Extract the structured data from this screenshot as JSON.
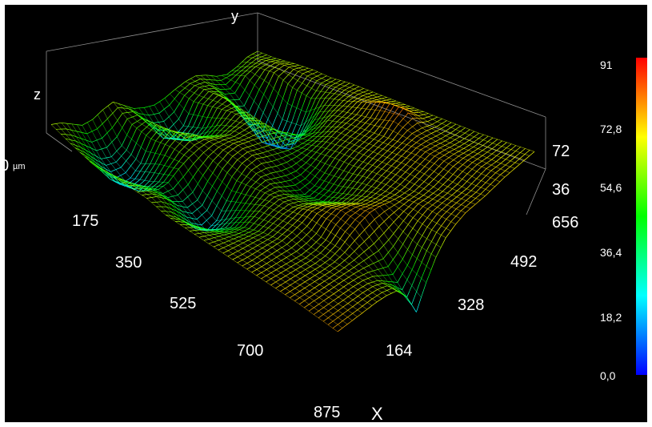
{
  "chart_data": {
    "type": "surface",
    "axis_names": {
      "x": "X",
      "y": "y",
      "z": "z"
    },
    "z_unit": "µm",
    "x_ticks": [
      "175",
      "350",
      "525",
      "700",
      "875"
    ],
    "y_ticks": [
      "164",
      "328",
      "492",
      "656"
    ],
    "z_ticks": [
      "0",
      "36",
      "72"
    ],
    "x_range": [
      0,
      875
    ],
    "y_range": [
      0,
      820
    ],
    "z_range": [
      0,
      91
    ],
    "colorbar": {
      "min": 0,
      "max": 91,
      "ticks": [
        "91",
        "72,8",
        "54,6",
        "36,4",
        "18,2",
        "0,0"
      ],
      "colormap": [
        "#0000ff",
        "#00ffff",
        "#00ff00",
        "#ffff00",
        "#ff0000"
      ]
    },
    "surface_heights_um": [
      [
        62,
        60,
        55,
        50,
        52,
        58,
        62,
        55,
        48,
        45,
        44,
        47,
        52,
        56,
        58,
        55,
        50,
        48,
        52,
        58,
        60
      ],
      [
        58,
        50,
        40,
        30,
        28,
        35,
        52,
        54,
        40,
        26,
        22,
        30,
        50,
        58,
        55,
        45,
        42,
        55,
        60,
        62,
        60
      ],
      [
        55,
        42,
        28,
        18,
        20,
        30,
        50,
        58,
        48,
        35,
        30,
        38,
        55,
        60,
        50,
        30,
        25,
        45,
        62,
        65,
        62
      ],
      [
        58,
        48,
        35,
        25,
        30,
        42,
        55,
        62,
        58,
        50,
        46,
        52,
        60,
        58,
        40,
        15,
        8,
        28,
        55,
        64,
        63
      ],
      [
        60,
        55,
        48,
        40,
        42,
        50,
        56,
        60,
        62,
        60,
        58,
        60,
        62,
        56,
        38,
        18,
        12,
        30,
        52,
        62,
        62
      ],
      [
        62,
        58,
        50,
        38,
        30,
        32,
        45,
        56,
        62,
        64,
        62,
        60,
        58,
        55,
        48,
        40,
        42,
        52,
        60,
        64,
        64
      ],
      [
        60,
        52,
        40,
        28,
        20,
        24,
        38,
        52,
        60,
        62,
        58,
        55,
        52,
        50,
        50,
        52,
        58,
        62,
        65,
        66,
        64
      ],
      [
        62,
        56,
        48,
        40,
        36,
        40,
        48,
        56,
        58,
        54,
        50,
        48,
        50,
        54,
        58,
        62,
        64,
        66,
        72,
        68,
        64
      ],
      [
        64,
        60,
        56,
        52,
        50,
        54,
        58,
        60,
        56,
        48,
        42,
        44,
        50,
        58,
        62,
        64,
        66,
        70,
        80,
        70,
        64
      ],
      [
        66,
        64,
        62,
        60,
        58,
        60,
        62,
        62,
        58,
        52,
        46,
        48,
        54,
        60,
        64,
        66,
        68,
        76,
        82,
        70,
        64
      ],
      [
        68,
        66,
        65,
        64,
        63,
        64,
        66,
        70,
        68,
        62,
        56,
        56,
        60,
        64,
        66,
        68,
        70,
        72,
        70,
        66,
        64
      ],
      [
        70,
        68,
        66,
        64,
        62,
        62,
        64,
        72,
        75,
        72,
        66,
        64,
        64,
        66,
        68,
        70,
        72,
        70,
        67,
        65,
        64
      ],
      [
        72,
        70,
        68,
        66,
        64,
        63,
        65,
        70,
        74,
        76,
        74,
        70,
        67,
        66,
        68,
        70,
        72,
        70,
        67,
        65,
        64
      ],
      [
        74,
        72,
        70,
        68,
        66,
        64,
        62,
        60,
        58,
        60,
        64,
        68,
        70,
        68,
        67,
        68,
        70,
        70,
        68,
        66,
        65
      ],
      [
        75,
        73,
        71,
        69,
        67,
        64,
        58,
        48,
        38,
        46,
        58,
        66,
        70,
        70,
        69,
        68,
        69,
        70,
        68,
        67,
        66
      ],
      [
        76,
        74,
        72,
        70,
        68,
        65,
        60,
        45,
        20,
        40,
        56,
        66,
        70,
        72,
        71,
        70,
        70,
        70,
        69,
        68,
        67
      ]
    ]
  }
}
